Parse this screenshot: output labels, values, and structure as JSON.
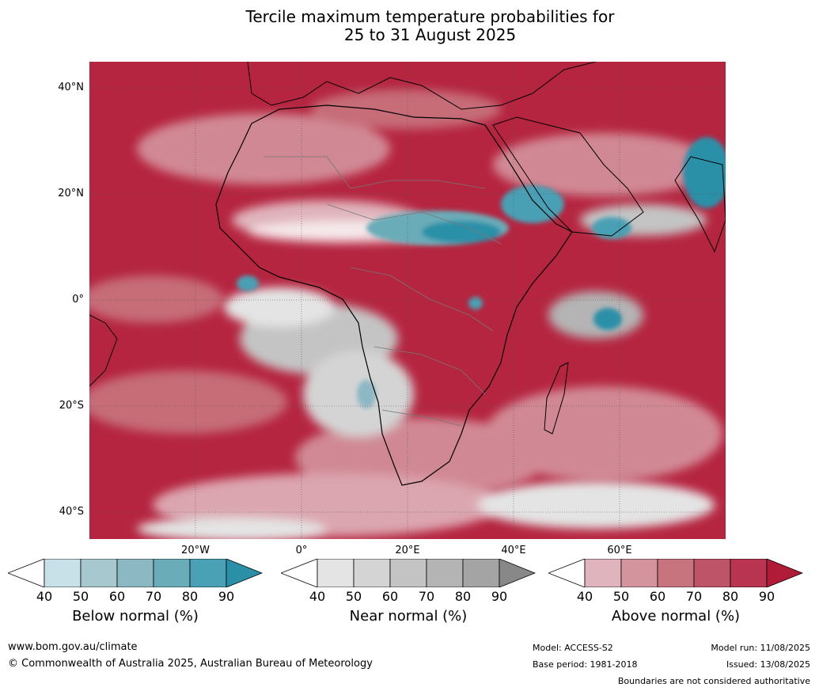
{
  "title_line1": "Tercile maximum temperature probabilities for",
  "title_line2": "25 to 31 August 2025",
  "lat_labels": [
    "40°N",
    "20°N",
    "0°",
    "20°S",
    "40°S"
  ],
  "lon_labels": [
    "20°W",
    "0°",
    "20°E",
    "40°E",
    "60°E"
  ],
  "colorbars": [
    {
      "label": "Below normal (%)",
      "ticks": [
        "40",
        "50",
        "60",
        "70",
        "80",
        "90"
      ],
      "colors": [
        "#ffffff",
        "#c8e0e8",
        "#a8c8d0",
        "#8cb8c4",
        "#6aacb8",
        "#4aa0b4",
        "#2a90a8"
      ]
    },
    {
      "label": "Near normal (%)",
      "ticks": [
        "40",
        "50",
        "60",
        "70",
        "80",
        "90"
      ],
      "colors": [
        "#ffffff",
        "#e4e4e4",
        "#d4d4d4",
        "#c4c4c4",
        "#b4b4b4",
        "#a4a4a4",
        "#888888"
      ]
    },
    {
      "label": "Above normal (%)",
      "ticks": [
        "40",
        "50",
        "60",
        "70",
        "80",
        "90"
      ],
      "colors": [
        "#ffffff",
        "#e0b4bc",
        "#d4949e",
        "#c8747f",
        "#be5468",
        "#b83450",
        "#b01c38"
      ]
    }
  ],
  "footer": {
    "website": "www.bom.gov.au/climate",
    "copyright": "© Commonwealth of Australia 2025, Australian Bureau of Meteorology",
    "model": "Model: ACCESS-S2",
    "base_period": "Base period: 1981-2018",
    "model_run": "Model run: 11/08/2025",
    "issued": "Issued: 13/08/2025",
    "disclaimer": "Boundaries are not considered authoritative"
  }
}
